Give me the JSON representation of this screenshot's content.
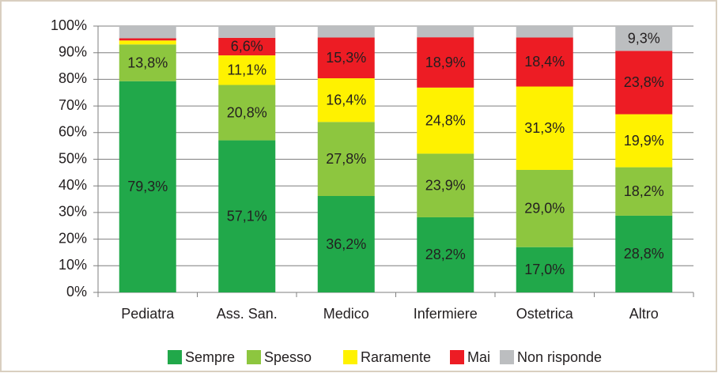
{
  "chart_data": {
    "type": "stacked_bar",
    "categories": [
      "Pediatra",
      "Ass. San.",
      "Medico",
      "Infermiere",
      "Ostetrica",
      "Altro"
    ],
    "series": [
      {
        "name": "Sempre",
        "color": "#21a84a",
        "values": [
          79.3,
          57.1,
          36.2,
          28.2,
          17.0,
          28.8
        ],
        "value_labels": [
          "79,3%",
          "57,1%",
          "36,2%",
          "28,2%",
          "17,0%",
          "28,8%"
        ]
      },
      {
        "name": "Spesso",
        "color": "#8dc63f",
        "values": [
          13.8,
          20.8,
          27.8,
          23.9,
          29.0,
          18.2
        ],
        "value_labels": [
          "13,8%",
          "20,8%",
          "27,8%",
          "23,9%",
          "29,0%",
          "18,2%"
        ]
      },
      {
        "name": "Raramente",
        "color": "#fff200",
        "values": [
          1.5,
          11.1,
          16.4,
          24.8,
          31.3,
          19.9
        ],
        "value_labels": [
          null,
          "11,1%",
          "16,4%",
          "24,8%",
          "31,3%",
          "19,9%"
        ]
      },
      {
        "name": "Mai",
        "color": "#ed1c24",
        "values": [
          0.8,
          6.6,
          15.3,
          18.9,
          18.4,
          23.8
        ],
        "value_labels": [
          null,
          "6,6%",
          "15,3%",
          "18,9%",
          "18,4%",
          "23,8%"
        ]
      },
      {
        "name": "Non risponde",
        "color": "#bcbec0",
        "values": [
          4.6,
          4.4,
          4.3,
          4.2,
          4.3,
          9.3
        ],
        "value_labels": [
          null,
          null,
          null,
          null,
          null,
          "9,3%"
        ]
      }
    ],
    "ylim": [
      0,
      100
    ],
    "yticks": [
      {
        "value": 0,
        "label": "0%"
      },
      {
        "value": 10,
        "label": "10%"
      },
      {
        "value": 20,
        "label": "20%"
      },
      {
        "value": 30,
        "label": "30%"
      },
      {
        "value": 40,
        "label": "40%"
      },
      {
        "value": 50,
        "label": "50%"
      },
      {
        "value": 60,
        "label": "60%"
      },
      {
        "value": 70,
        "label": "70%"
      },
      {
        "value": 80,
        "label": "80%"
      },
      {
        "value": 90,
        "label": "90%"
      },
      {
        "value": 100,
        "label": "100%"
      }
    ],
    "grid": true,
    "legend": "bottom"
  }
}
